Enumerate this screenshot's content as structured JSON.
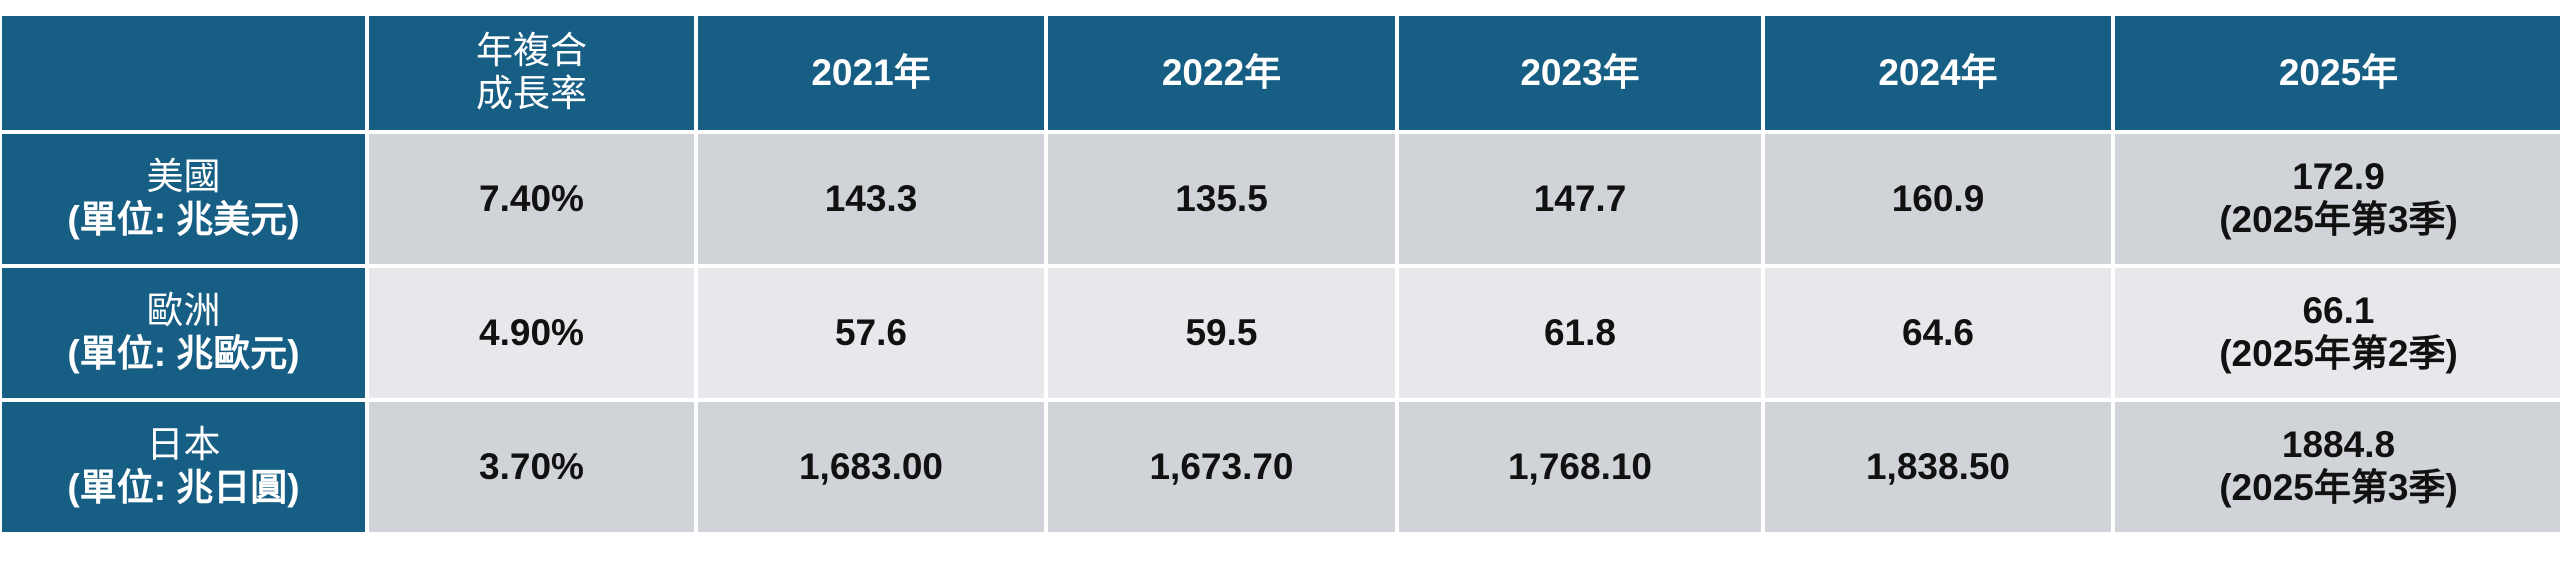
{
  "table": {
    "header": {
      "growth": [
        "年複合",
        "成長率"
      ],
      "years": [
        "2021年",
        "2022年",
        "2023年",
        "2024年",
        "2025年"
      ]
    },
    "rows": [
      {
        "label": [
          "美國",
          "(單位: 兆美元)"
        ],
        "growth": "7.40%",
        "values": [
          "143.3",
          "135.5",
          "147.7",
          "160.9"
        ],
        "latest": [
          "172.9",
          "(2025年第3季)"
        ]
      },
      {
        "label": [
          "歐洲",
          "(單位: 兆歐元)"
        ],
        "growth": "4.90%",
        "values": [
          "57.6",
          "59.5",
          "61.8",
          "64.6"
        ],
        "latest": [
          "66.1",
          "(2025年第2季)"
        ]
      },
      {
        "label": [
          "日本",
          "(單位: 兆日圓)"
        ],
        "growth": "3.70%",
        "values": [
          "1,683.00",
          "1,673.70",
          "1,768.10",
          "1,838.50"
        ],
        "latest": [
          "1884.8",
          "(2025年第3季)"
        ]
      }
    ]
  }
}
